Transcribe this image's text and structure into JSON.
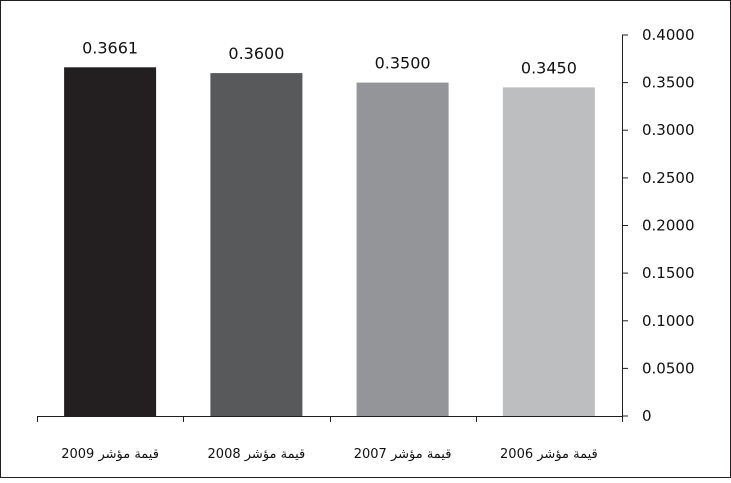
{
  "chart_data": {
    "type": "bar",
    "categories": [
      "قيمة مؤشر 2009",
      "قيمة مؤشر 2008",
      "قيمة مؤشر 2007",
      "قيمة مؤشر 2006"
    ],
    "values": [
      0.3661,
      0.36,
      0.35,
      0.345
    ],
    "value_labels": [
      "0.3661",
      "0.3600",
      "0.3500",
      "0.3450"
    ],
    "bar_colors": [
      "#231f20",
      "#58595b",
      "#939598",
      "#bcbec0"
    ],
    "y_ticks": [
      "0",
      "0.0500",
      "0.1000",
      "0.1500",
      "0.2000",
      "0.2500",
      "0.3000",
      "0.3500",
      "0.4000"
    ],
    "ylim": [
      0,
      0.4
    ],
    "y_axis_side": "right",
    "grid": false,
    "legend": "none",
    "title": "",
    "xlabel": "",
    "ylabel": ""
  }
}
